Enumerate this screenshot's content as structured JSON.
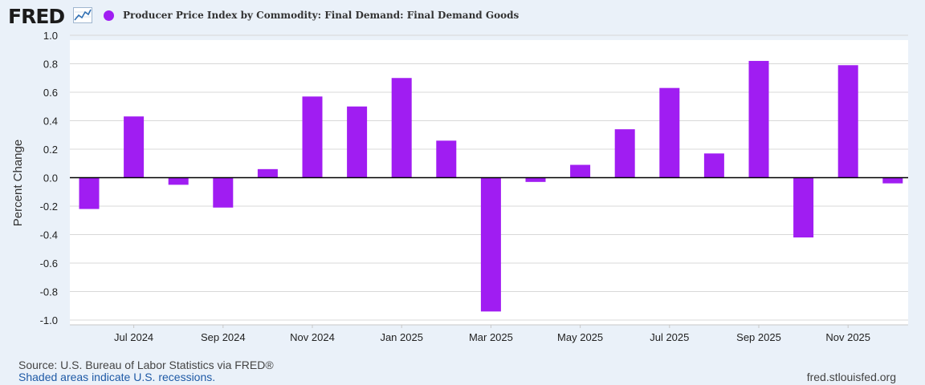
{
  "header": {
    "logo_text": "FRED",
    "logo_icon": "line-chart-icon",
    "legend_color": "#a01df2",
    "series_title": "Producer Price Index by Commodity: Final Demand: Final Demand Goods"
  },
  "chart_data": {
    "type": "bar",
    "title": "Producer Price Index by Commodity: Final Demand: Final Demand Goods",
    "xlabel": "",
    "ylabel": "Percent Change",
    "ylim": [
      -1.0,
      1.0
    ],
    "y_ticks": [
      "1.0",
      "0.8",
      "0.6",
      "0.4",
      "0.2",
      "0.0",
      "-0.2",
      "-0.4",
      "-0.6",
      "-0.8",
      "-1.0"
    ],
    "y_tick_values": [
      1.0,
      0.8,
      0.6,
      0.4,
      0.2,
      0.0,
      -0.2,
      -0.4,
      -0.6,
      -0.8,
      -1.0
    ],
    "x_tick_labels": [
      "Jul 2024",
      "Sep 2024",
      "Nov 2024",
      "Jan 2025",
      "Mar 2025",
      "May 2025",
      "Jul 2025",
      "Sep 2025",
      "Nov 2025"
    ],
    "x_tick_category_index": [
      1,
      3,
      5,
      7,
      9,
      11,
      13,
      15,
      17
    ],
    "categories": [
      "2024-06",
      "2024-07",
      "2024-08",
      "2024-09",
      "2024-10",
      "2024-11",
      "2024-12",
      "2025-01",
      "2025-02",
      "2025-03",
      "2025-04",
      "2025-05",
      "2025-06",
      "2025-07",
      "2025-08",
      "2025-09",
      "2025-10",
      "2025-11",
      "2025-12"
    ],
    "values": [
      -0.22,
      0.43,
      -0.05,
      -0.21,
      0.06,
      0.57,
      0.5,
      0.7,
      0.26,
      -0.94,
      -0.03,
      0.09,
      0.34,
      0.63,
      0.17,
      0.82,
      -0.42,
      0.79,
      -0.04
    ],
    "bar_color": "#a01df2",
    "grid": true
  },
  "footer": {
    "source": "Source: U.S. Bureau of Labor Statistics via FRED®",
    "recessions": "Shaded areas indicate U.S. recessions.",
    "url": "fred.stlouisfed.org"
  }
}
